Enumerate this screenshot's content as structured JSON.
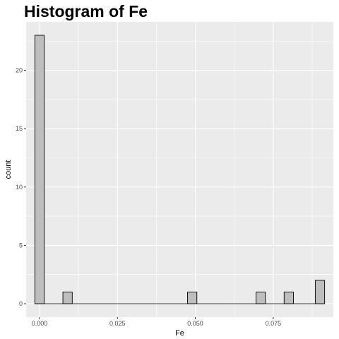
{
  "chart_data": {
    "type": "bar",
    "title": "Histogram of Fe",
    "xlabel": "Fe",
    "ylabel": "count",
    "bin_width": 0.003,
    "bins": [
      {
        "x": 0.0,
        "count": 23
      },
      {
        "x": 0.009,
        "count": 1
      },
      {
        "x": 0.049,
        "count": 1
      },
      {
        "x": 0.071,
        "count": 1
      },
      {
        "x": 0.08,
        "count": 1
      },
      {
        "x": 0.09,
        "count": 2
      }
    ],
    "xlim": [
      -0.0043,
      0.0943
    ],
    "ylim": [
      -1.15,
      24.15
    ],
    "x_ticks": [
      0.0,
      0.025,
      0.05,
      0.075
    ],
    "x_tick_labels": [
      "0.000",
      "0.025",
      "0.050",
      "0.075"
    ],
    "y_ticks": [
      0,
      5,
      10,
      15,
      20
    ],
    "y_tick_labels": [
      "0",
      "5",
      "10",
      "15",
      "20"
    ],
    "grid": true,
    "colors": {
      "panel": "#ebebeb",
      "grid": "#ffffff",
      "bar_fill": "#bebebe",
      "bar_outline": "#000000"
    }
  }
}
